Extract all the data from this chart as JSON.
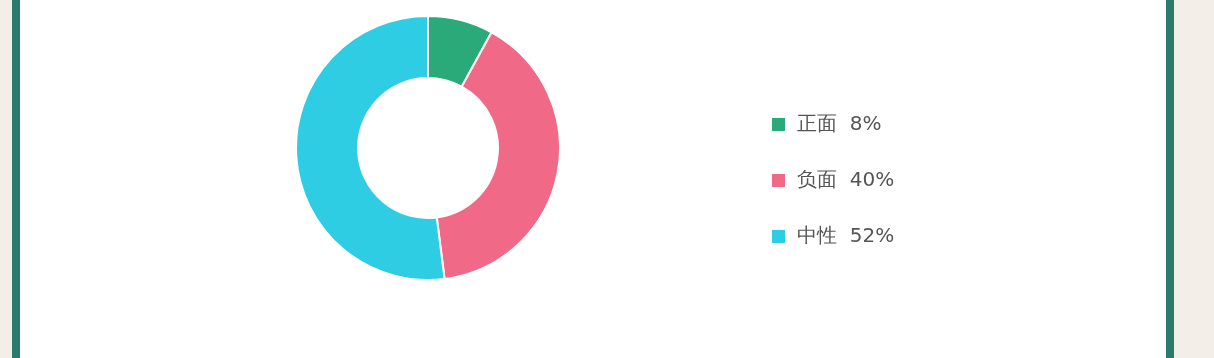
{
  "chart_data": {
    "type": "donut",
    "categories": [
      "正面",
      "负面",
      "中性"
    ],
    "values": [
      8,
      40,
      52
    ],
    "colors": [
      "#2aaa78",
      "#f06a88",
      "#2ecde3"
    ],
    "value_labels": [
      "8%",
      "40%",
      "52%"
    ],
    "legend": "right"
  }
}
